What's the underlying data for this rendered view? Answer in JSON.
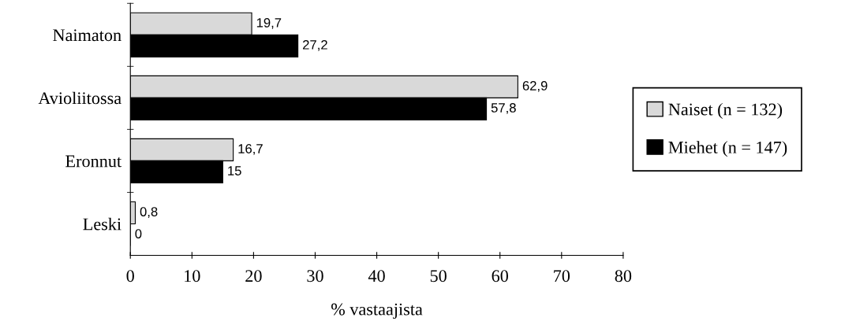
{
  "chart_data": {
    "type": "bar",
    "orientation": "horizontal",
    "xlabel": "% vastaajista",
    "categories": [
      "Naimaton",
      "Avioliitossa",
      "Eronnut",
      "Leski"
    ],
    "series": [
      {
        "name": "Naiset (n = 132)",
        "color": "#d9d9d9",
        "values": [
          19.7,
          62.9,
          16.7,
          0.8
        ],
        "value_labels": [
          "19,7",
          "62,9",
          "16,7",
          "0,8"
        ]
      },
      {
        "name": "Miehet (n = 147)",
        "color": "#000000",
        "values": [
          27.2,
          57.8,
          15,
          0
        ],
        "value_labels": [
          "27,2",
          "57,8",
          "15",
          "0"
        ]
      }
    ],
    "xlim": [
      0,
      80
    ],
    "xticks": [
      0,
      10,
      20,
      30,
      40,
      50,
      60,
      70,
      80
    ],
    "grid": false,
    "legend": "right"
  }
}
